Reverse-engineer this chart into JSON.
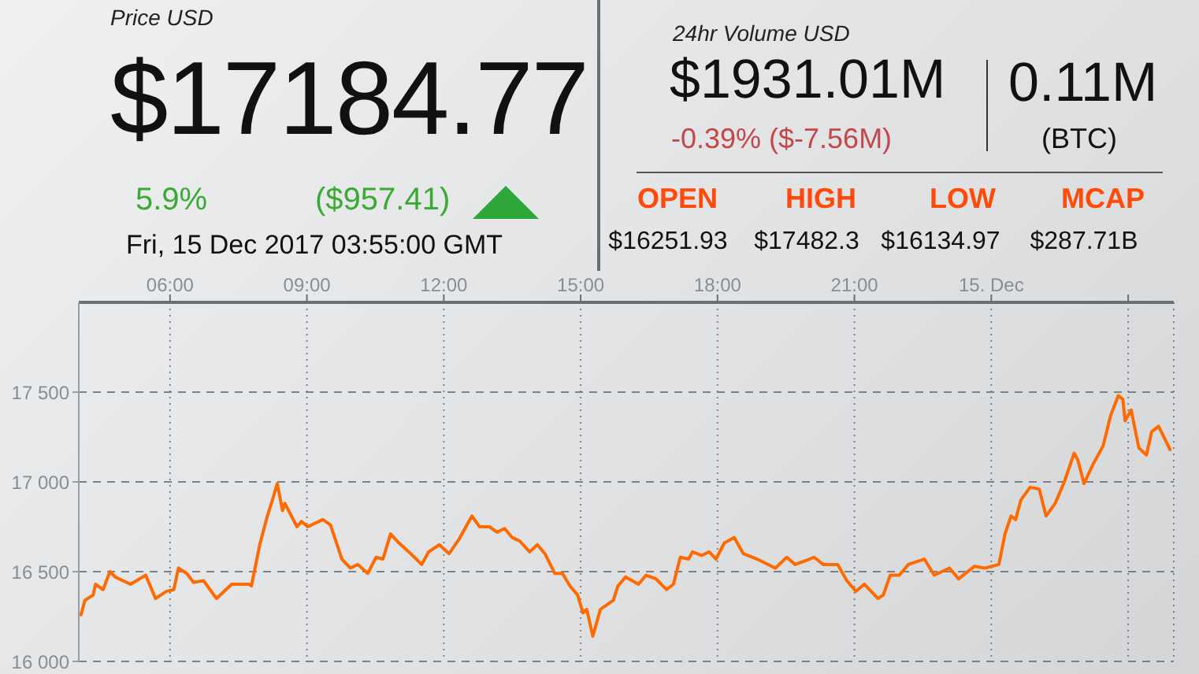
{
  "chart_data": {
    "type": "line",
    "annotations": [
      "Price USD",
      "$17184.77",
      "5.9%",
      "($957.41)",
      "Fri, 15 Dec 2017 03:55:00 GMT",
      "24hr Volume USD",
      "$1931.01M",
      "-0.39% ($-7.56M)",
      "0.11M",
      "(BTC)",
      "OPEN",
      "$16251.93",
      "HIGH",
      "$17482.3",
      "LOW",
      "$16134.97",
      "MCAP",
      "$287.71B"
    ],
    "x": [
      "2017-12-14T04:03",
      "2017-12-14T04:08",
      "2017-12-14T04:19",
      "2017-12-14T04:22",
      "2017-12-14T04:32",
      "2017-12-14T04:41",
      "2017-12-14T04:48",
      "2017-12-14T05:08",
      "2017-12-14T05:28",
      "2017-12-14T05:41",
      "2017-12-14T05:55",
      "2017-12-14T06:05",
      "2017-12-14T06:11",
      "2017-12-14T06:22",
      "2017-12-14T06:31",
      "2017-12-14T06:44",
      "2017-12-14T07:01",
      "2017-12-14T07:21",
      "2017-12-14T07:44",
      "2017-12-14T07:47",
      "2017-12-14T07:58",
      "2017-12-14T08:08",
      "2017-12-14T08:14",
      "2017-12-14T08:21",
      "2017-12-14T08:28",
      "2017-12-14T08:31",
      "2017-12-14T08:47",
      "2017-12-14T08:53",
      "2017-12-14T09:01",
      "2017-12-14T09:21",
      "2017-12-14T09:31",
      "2017-12-14T09:46",
      "2017-12-14T09:57",
      "2017-12-14T10:07",
      "2017-12-14T10:20",
      "2017-12-14T10:31",
      "2017-12-14T10:40",
      "2017-12-14T10:50",
      "2017-12-14T11:01",
      "2017-12-14T11:14",
      "2017-12-14T11:31",
      "2017-12-14T11:40",
      "2017-12-14T11:54",
      "2017-12-14T12:07",
      "2017-12-14T12:20",
      "2017-12-14T12:37",
      "2017-12-14T12:47",
      "2017-12-14T13:00",
      "2017-12-14T13:10",
      "2017-12-14T13:20",
      "2017-12-14T13:30",
      "2017-12-14T13:40",
      "2017-12-14T13:53",
      "2017-12-14T14:03",
      "2017-12-14T14:13",
      "2017-12-14T14:26",
      "2017-12-14T14:36",
      "2017-12-14T14:46",
      "2017-12-14T14:56",
      "2017-12-14T15:03",
      "2017-12-14T15:08",
      "2017-12-14T15:16",
      "2017-12-14T15:26",
      "2017-12-14T15:43",
      "2017-12-14T15:49",
      "2017-12-14T15:59",
      "2017-12-14T16:16",
      "2017-12-14T16:26",
      "2017-12-14T16:39",
      "2017-12-14T16:53",
      "2017-12-14T17:02",
      "2017-12-14T17:11",
      "2017-12-14T17:22",
      "2017-12-14T17:27",
      "2017-12-14T17:39",
      "2017-12-14T17:49",
      "2017-12-14T17:58",
      "2017-12-14T18:09",
      "2017-12-14T18:22",
      "2017-12-14T18:34",
      "2017-12-14T18:52",
      "2017-12-14T19:16",
      "2017-12-14T19:31",
      "2017-12-14T19:42",
      "2017-12-14T19:55",
      "2017-12-14T20:07",
      "2017-12-14T20:19",
      "2017-12-14T20:38",
      "2017-12-14T20:50",
      "2017-12-14T21:02",
      "2017-12-14T21:13",
      "2017-12-14T21:31",
      "2017-12-14T21:38",
      "2017-12-14T21:47",
      "2017-12-14T21:59",
      "2017-12-14T22:11",
      "2017-12-14T22:32",
      "2017-12-14T22:45",
      "2017-12-14T23:05",
      "2017-12-14T23:17",
      "2017-12-14T23:38",
      "2017-12-14T23:52",
      "2017-12-15T00:10",
      "2017-12-15T00:18",
      "2017-12-15T00:26",
      "2017-12-15T00:32",
      "2017-12-15T00:39",
      "2017-12-15T00:51",
      "2017-12-15T01:03",
      "2017-12-15T01:12",
      "2017-12-15T01:24",
      "2017-12-15T01:36",
      "2017-12-15T01:49",
      "2017-12-15T01:54",
      "2017-12-15T02:02",
      "2017-12-15T02:14",
      "2017-12-15T02:27",
      "2017-12-15T02:37",
      "2017-12-15T02:47",
      "2017-12-15T02:53",
      "2017-12-15T02:56",
      "2017-12-15T03:04",
      "2017-12-15T03:14",
      "2017-12-15T03:24",
      "2017-12-15T03:31",
      "2017-12-15T03:40",
      "2017-12-15T03:55"
    ],
    "series": [
      {
        "color": "#ff6a00",
        "values": [
          16260,
          16340,
          16370,
          16430,
          16400,
          16500,
          16470,
          16430,
          16480,
          16350,
          16390,
          16400,
          16520,
          16490,
          16440,
          16450,
          16350,
          16430,
          16430,
          16420,
          16650,
          16810,
          16890,
          16990,
          16840,
          16880,
          16750,
          16780,
          16750,
          16790,
          16760,
          16570,
          16520,
          16540,
          16490,
          16580,
          16570,
          16710,
          16660,
          16610,
          16540,
          16610,
          16650,
          16600,
          16680,
          16810,
          16750,
          16750,
          16720,
          16740,
          16690,
          16670,
          16610,
          16650,
          16600,
          16490,
          16490,
          16420,
          16370,
          16270,
          16290,
          16140,
          16290,
          16340,
          16420,
          16470,
          16430,
          16480,
          16460,
          16400,
          16430,
          16580,
          16570,
          16610,
          16590,
          16610,
          16570,
          16660,
          16690,
          16600,
          16570,
          16520,
          16580,
          16540,
          16560,
          16580,
          16540,
          16540,
          16450,
          16390,
          16430,
          16350,
          16370,
          16480,
          16480,
          16540,
          16570,
          16480,
          16520,
          16460,
          16530,
          16520,
          16540,
          16710,
          16810,
          16790,
          16900,
          16970,
          16960,
          16810,
          16880,
          17000,
          17160,
          17120,
          16990,
          17100,
          17200,
          17370,
          17480,
          17460,
          17340,
          17400,
          17190,
          17150,
          17280,
          17310,
          17180
        ]
      }
    ],
    "xlim": [
      "2017-12-14T04:00",
      "2017-12-15T04:00"
    ],
    "xticks": [
      {
        "value": "2017-12-14T06:00",
        "label": "06:00"
      },
      {
        "value": "2017-12-14T09:00",
        "label": "09:00"
      },
      {
        "value": "2017-12-14T12:00",
        "label": "12:00"
      },
      {
        "value": "2017-12-14T15:00",
        "label": "15:00"
      },
      {
        "value": "2017-12-14T18:00",
        "label": "18:00"
      },
      {
        "value": "2017-12-14T21:00",
        "label": "21:00"
      },
      {
        "value": "2017-12-15T00:00",
        "label": "15. Dec"
      },
      {
        "value": "2017-12-15T03:00",
        "label": null
      }
    ],
    "ylim": [
      16000,
      18000
    ],
    "yticks": [
      {
        "value": 16000,
        "label": "16 000"
      },
      {
        "value": 16500,
        "label": "16 500"
      },
      {
        "value": 17000,
        "label": "17 000"
      },
      {
        "value": 17500,
        "label": "17 500"
      }
    ],
    "grid": true,
    "line_style": "solid"
  }
}
